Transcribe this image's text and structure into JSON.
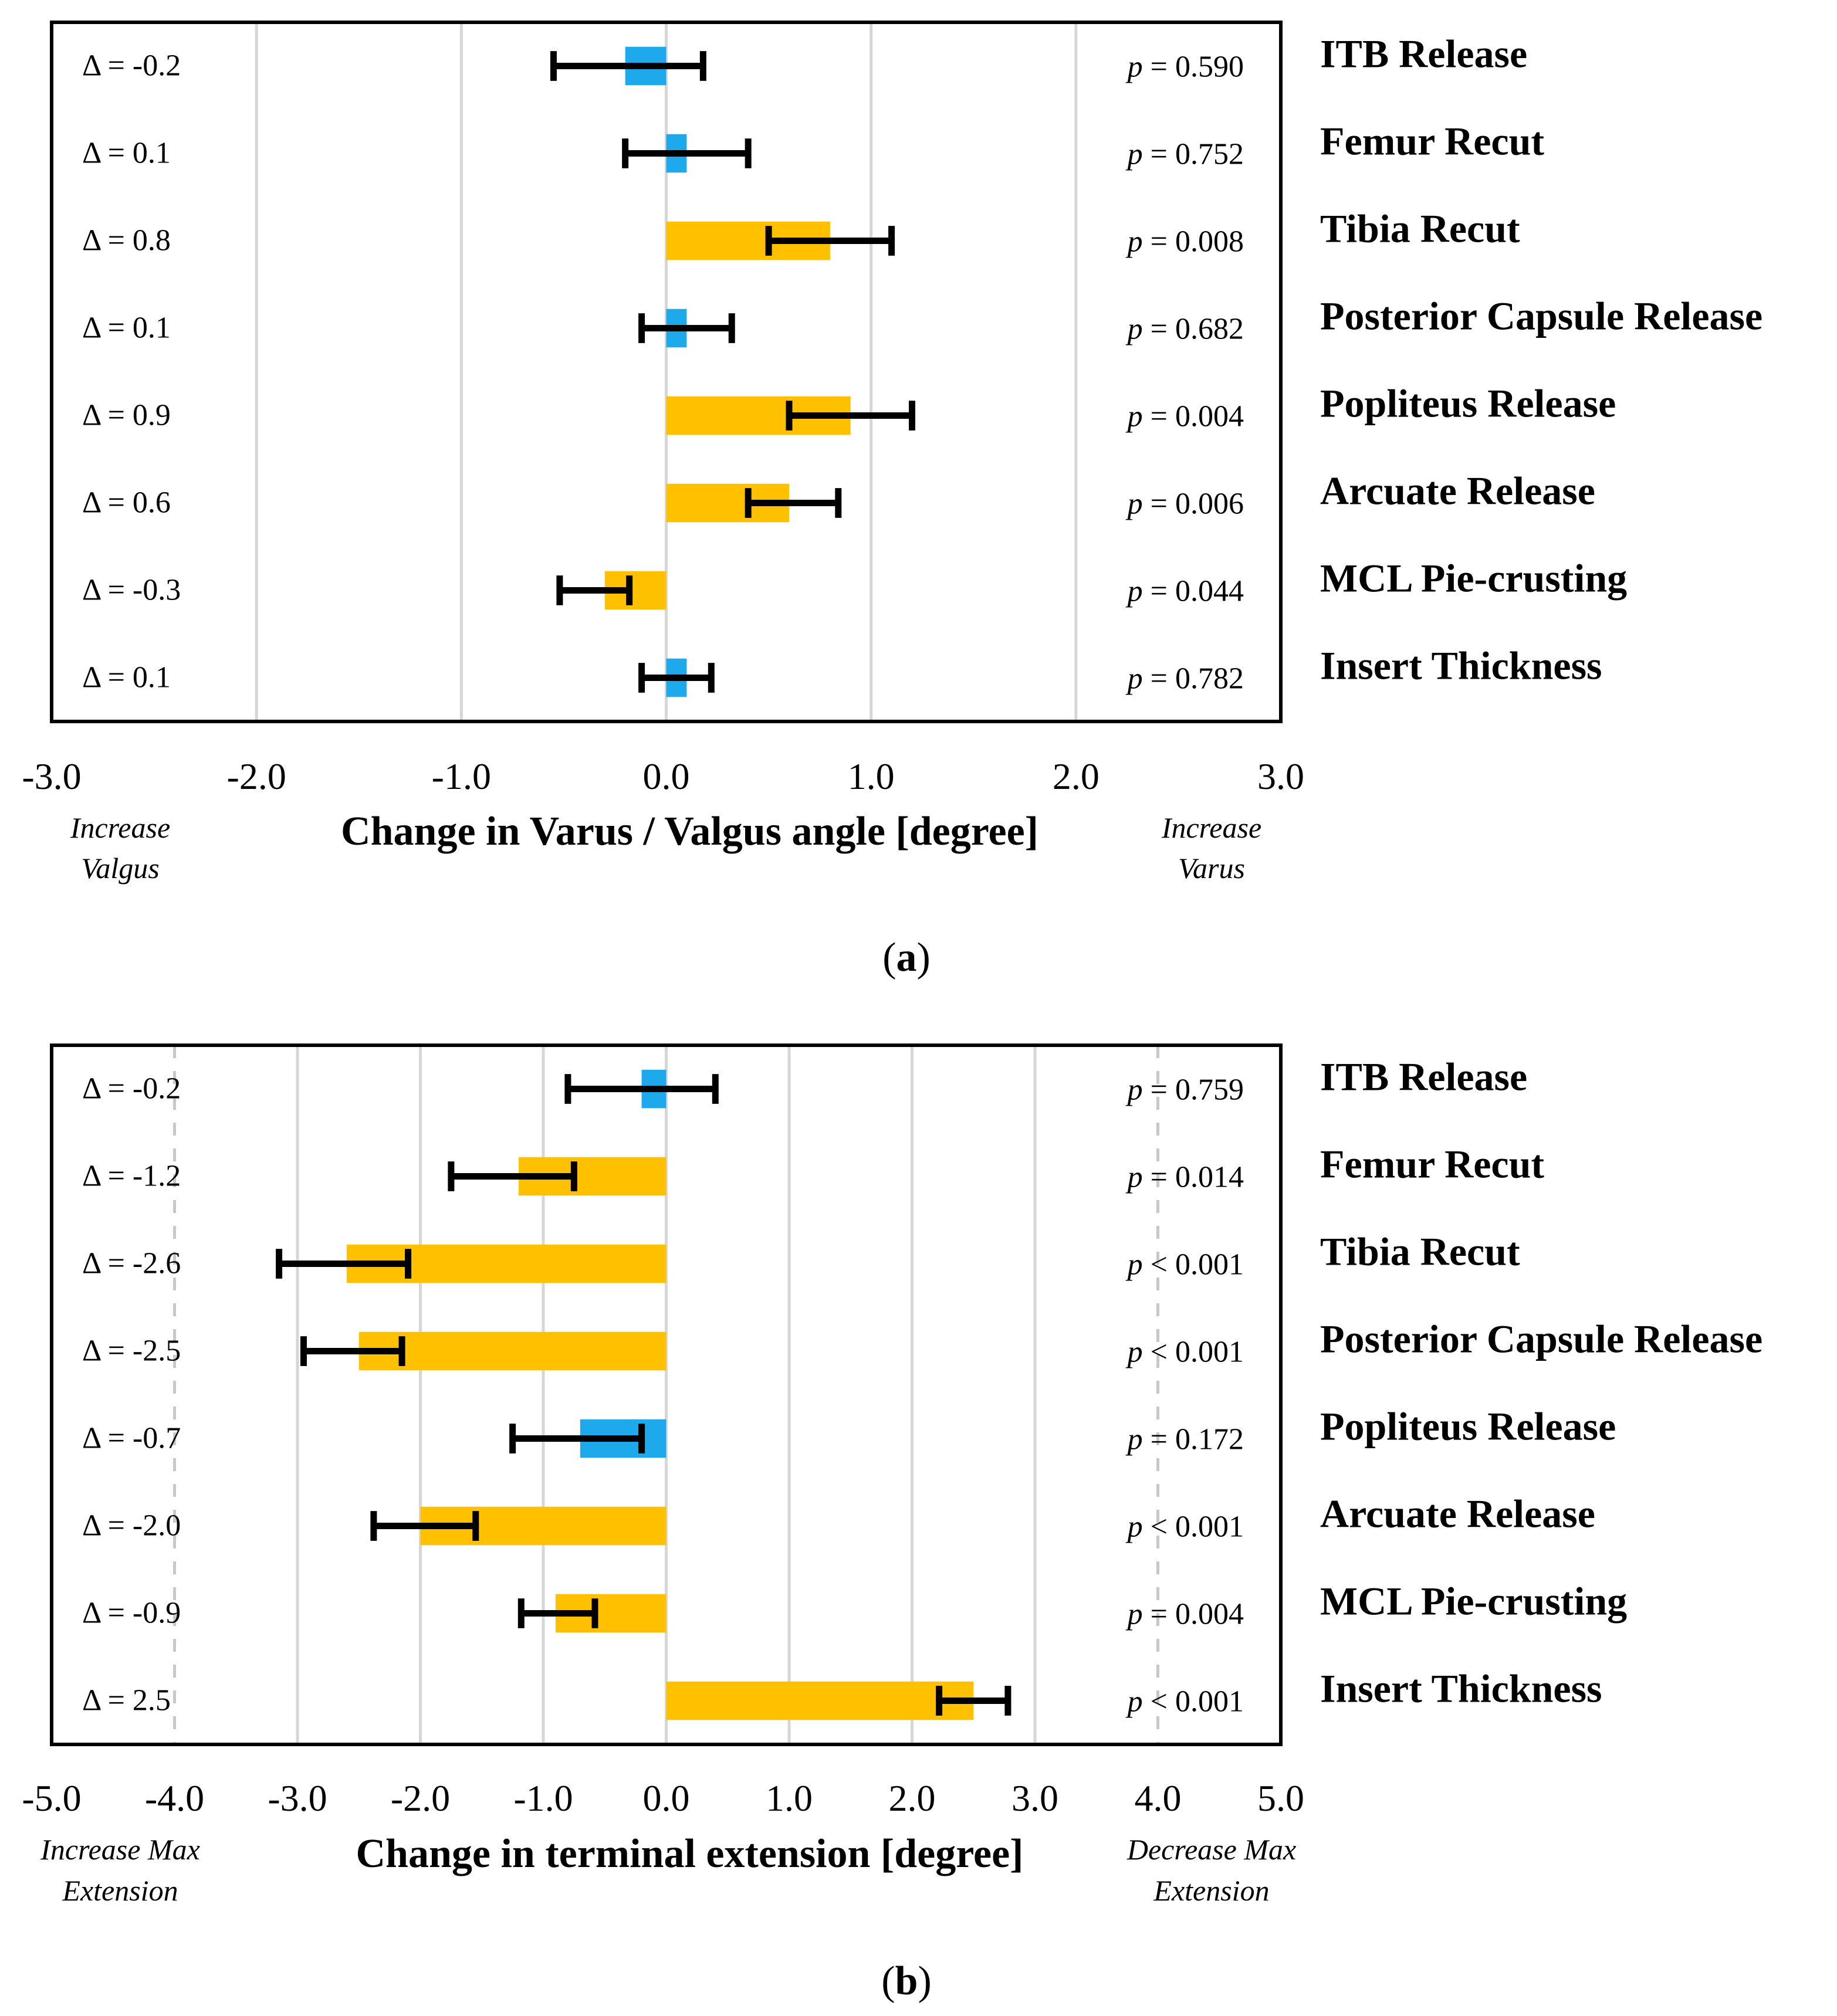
{
  "chart_data": [
    {
      "type": "bar",
      "orientation": "horizontal",
      "panel_label": "a",
      "xlabel": "Change in Varus / Valgus angle [degree]",
      "xlim": [
        -3.0,
        3.0
      ],
      "xticks": [
        "-3.0",
        "-2.0",
        "-1.0",
        "0.0",
        "1.0",
        "2.0",
        "3.0"
      ],
      "grid": "vertical",
      "left_annotation": {
        "line1": "Increase",
        "line2": "Valgus"
      },
      "right_annotation": {
        "line1": "Increase",
        "line2": "Varus"
      },
      "colors": {
        "significant": "#FFC000",
        "non_significant": "#1EA9EC",
        "error_bar": "#000000"
      },
      "categories": [
        "ITB Release",
        "Femur Recut",
        "Tibia Recut",
        "Posterior Capsule Release",
        "Popliteus Release",
        "Arcuate Release",
        "MCL Pie-crusting",
        "Insert Thickness"
      ],
      "values": [
        -0.2,
        0.1,
        0.8,
        0.1,
        0.9,
        0.6,
        -0.3,
        0.1
      ],
      "error_low": [
        -0.55,
        -0.2,
        0.5,
        -0.12,
        0.6,
        0.4,
        -0.52,
        -0.12
      ],
      "error_high": [
        0.18,
        0.4,
        1.1,
        0.32,
        1.2,
        0.84,
        -0.18,
        0.22
      ],
      "significant": [
        false,
        false,
        true,
        false,
        true,
        true,
        true,
        false
      ],
      "delta_labels": [
        "Δ = -0.2",
        "Δ = 0.1",
        "Δ = 0.8",
        "Δ = 0.1",
        "Δ = 0.9",
        "Δ = 0.6",
        "Δ = -0.3",
        "Δ = 0.1"
      ],
      "p_values": [
        "= 0.590",
        "= 0.752",
        "= 0.008",
        "= 0.682",
        "= 0.004",
        "= 0.006",
        "= 0.044",
        "= 0.782"
      ]
    },
    {
      "type": "bar",
      "orientation": "horizontal",
      "panel_label": "b",
      "xlabel": "Change in terminal extension [degree]",
      "xlim": [
        -5.0,
        5.0
      ],
      "xticks": [
        "-5.0",
        "-4.0",
        "-3.0",
        "-2.0",
        "-1.0",
        "0.0",
        "1.0",
        "2.0",
        "3.0",
        "4.0",
        "5.0"
      ],
      "grid": "vertical",
      "dashed_gridlines_at": [
        -4.0,
        4.0
      ],
      "left_annotation": {
        "line1": "Increase Max",
        "line2": "Extension"
      },
      "right_annotation": {
        "line1": "Decrease Max",
        "line2": "Extension"
      },
      "colors": {
        "significant": "#FFC000",
        "non_significant": "#1EA9EC",
        "error_bar": "#000000"
      },
      "categories": [
        "ITB Release",
        "Femur Recut",
        "Tibia Recut",
        "Posterior Capsule Release",
        "Popliteus Release",
        "Arcuate Release",
        "MCL Pie-crusting",
        "Insert Thickness"
      ],
      "values": [
        -0.2,
        -1.2,
        -2.6,
        -2.5,
        -0.7,
        -2.0,
        -0.9,
        2.5
      ],
      "error_low": [
        -0.8,
        -1.75,
        -3.15,
        -2.95,
        -1.25,
        -2.38,
        -1.18,
        2.22
      ],
      "error_high": [
        0.4,
        -0.75,
        -2.1,
        -2.15,
        -0.2,
        -1.55,
        -0.58,
        2.78
      ],
      "significant": [
        false,
        true,
        true,
        true,
        false,
        true,
        true,
        true
      ],
      "delta_labels": [
        "Δ = -0.2",
        "Δ = -1.2",
        "Δ = -2.6",
        "Δ = -2.5",
        "Δ = -0.7",
        "Δ = -2.0",
        "Δ = -0.9",
        "Δ = 2.5"
      ],
      "p_values": [
        "= 0.759",
        "= 0.014",
        "< 0.001",
        "< 0.001",
        "= 0.172",
        "< 0.001",
        "= 0.004",
        "< 0.001"
      ]
    }
  ],
  "p_symbol": "p"
}
